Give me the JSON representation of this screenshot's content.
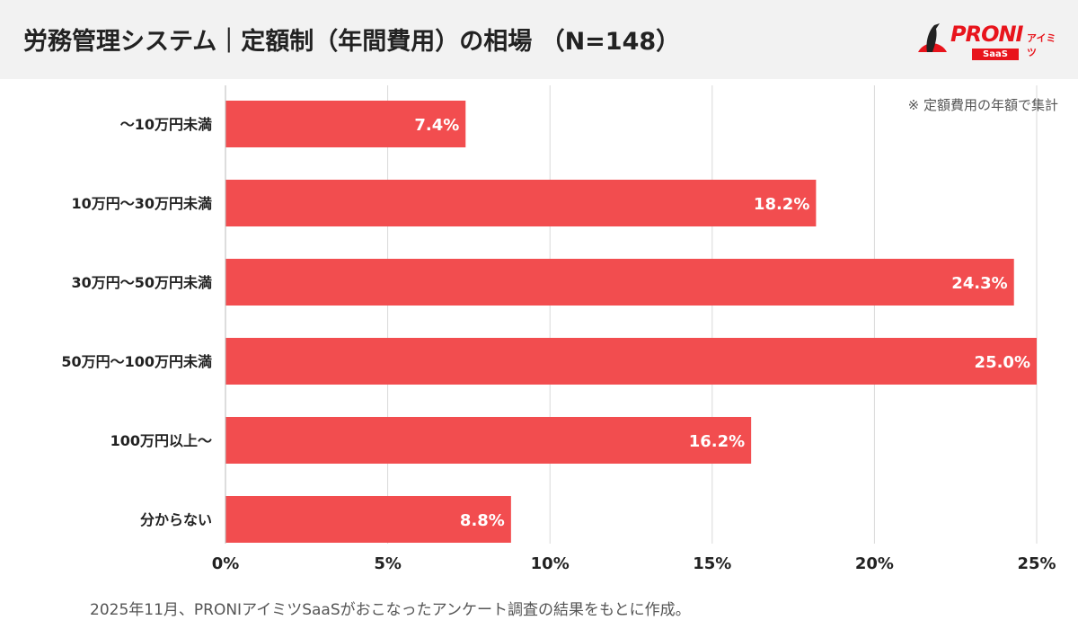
{
  "header": {
    "title": "労務管理システム｜定額制（年間費用）の相場 （N=148）"
  },
  "logo": {
    "text": "PRONI",
    "sub": "アイミツ",
    "badge": "SaaS"
  },
  "note": "※ 定額費用の年額で集計",
  "footer": "2025年11月、PRONIアイミツSaaSがおこなったアンケート調査の結果をもとに作成。",
  "colors": {
    "bar": "#f24d4f",
    "header_bg": "#f2f2f2",
    "brand": "#e8141c"
  },
  "chart_data": {
    "type": "bar",
    "orientation": "horizontal",
    "categories": [
      "〜10万円未満",
      "10万円〜30万円未満",
      "30万円〜50万円未満",
      "50万円〜100万円未満",
      "100万円以上〜",
      "分からない"
    ],
    "values": [
      7.4,
      18.2,
      24.3,
      25.0,
      16.2,
      8.8
    ],
    "data_labels": [
      "7.4%",
      "18.2%",
      "24.3%",
      "25.0%",
      "16.2%",
      "8.8%"
    ],
    "xlim": [
      0,
      25
    ],
    "xticks": [
      0,
      5,
      10,
      15,
      20,
      25
    ],
    "xtick_labels": [
      "0%",
      "5%",
      "10%",
      "15%",
      "20%",
      "25%"
    ],
    "grid": true
  }
}
